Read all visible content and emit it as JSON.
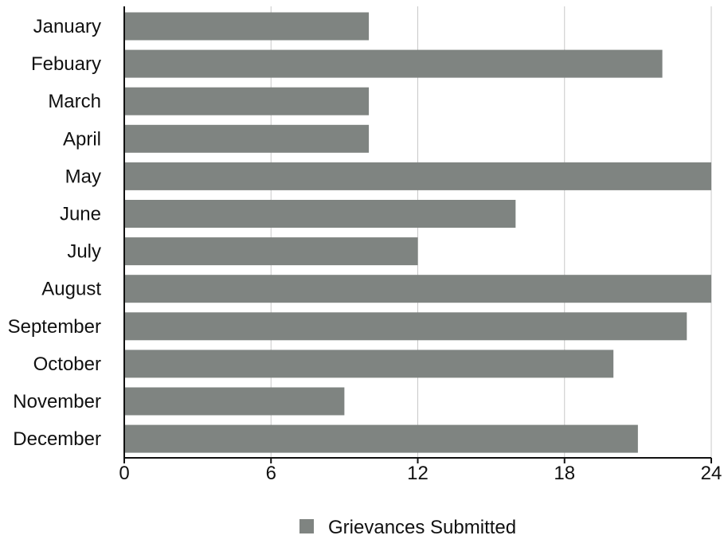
{
  "chart_data": {
    "type": "bar",
    "orientation": "horizontal",
    "categories": [
      "January",
      "Febuary",
      "March",
      "April",
      "May",
      "June",
      "July",
      "August",
      "September",
      "October",
      "November",
      "December"
    ],
    "series": [
      {
        "name": "Grievances Submitted",
        "values": [
          10,
          22,
          10,
          10,
          24,
          16,
          12,
          24,
          23,
          20,
          9,
          21
        ],
        "color": "#7f8481"
      }
    ],
    "xlim": [
      0,
      24
    ],
    "x_ticks": [
      "0",
      "6",
      "12",
      "18",
      "24"
    ],
    "grid": true,
    "legend_position": "bottom-center"
  },
  "legend": {
    "label": "Grievances Submitted",
    "color": "#7f8481"
  },
  "colors": {
    "axis": "#111111",
    "grid": "#c8c8c8",
    "text": "#111111"
  }
}
